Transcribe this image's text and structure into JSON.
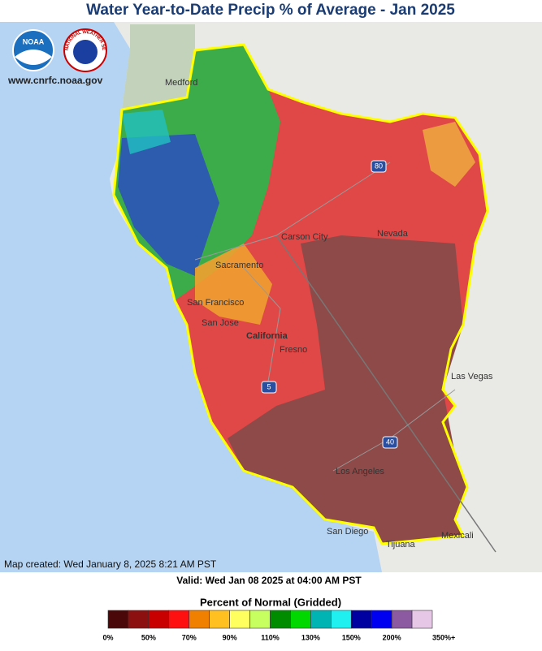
{
  "header": {
    "title": "Water Year-to-Date Precip % of Average - Jan 2025",
    "website": "www.cnrfc.noaa.gov",
    "logos": [
      "NOAA",
      "NATIONAL WEATHER SERVICE"
    ]
  },
  "map": {
    "places": [
      "Medford",
      "Carson City",
      "Nevada",
      "Sacramento",
      "San Francisco",
      "San Jose",
      "California",
      "Fresno",
      "Las Vegas",
      "Los Angeles",
      "San Diego",
      "Tijuana",
      "Mexicali"
    ],
    "highways": [
      "80",
      "5",
      "40"
    ]
  },
  "footer": {
    "created": "Map created: Wed January 8, 2025 8:21 AM PST",
    "valid": "Valid: Wed Jan 08 2025 at 04:00 AM PST"
  },
  "legend": {
    "title": "Percent of Normal (Gridded)",
    "labels": [
      "0%",
      "50%",
      "70%",
      "90%",
      "110%",
      "130%",
      "150%",
      "200%",
      "350%+"
    ],
    "colors": [
      "#4a0808",
      "#8c1010",
      "#c80000",
      "#ff1010",
      "#f08000",
      "#ffc020",
      "#ffff60",
      "#c8ff60",
      "#008c00",
      "#00d800",
      "#00b4b4",
      "#20f0f0",
      "#0000a0",
      "#0000f0",
      "#8c5aa0",
      "#e6c8e6"
    ]
  }
}
